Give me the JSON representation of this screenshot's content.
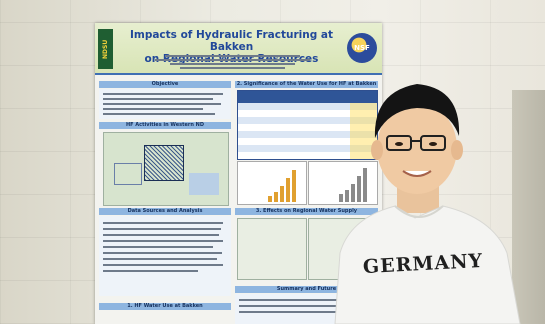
{
  "poster": {
    "logo_left": "NDSU",
    "logo_right": "NSF",
    "title_line1": "Impacts of Hydraulic Fracturing at Bakken",
    "title_line2": "on Regional Water Resources",
    "sections": {
      "objective": "Objective",
      "activities": "HF Activities in Western ND",
      "data_sources": "Data Sources and Analysis",
      "water_use": "1. HF Water Use at Bakken",
      "significance": "2. Significance of the Water Use for HF at Bakken",
      "effects": "3. Effects on Regional Water Supply",
      "summary": "Summary and Future"
    }
  },
  "shirt_text": "GERMANY",
  "colors": {
    "poster_header": "#d8e4b5",
    "section_header": "#8eb5e0",
    "title_blue": "#21489a",
    "shirt": "#f4f4f2",
    "wall": "#ecebe2"
  }
}
